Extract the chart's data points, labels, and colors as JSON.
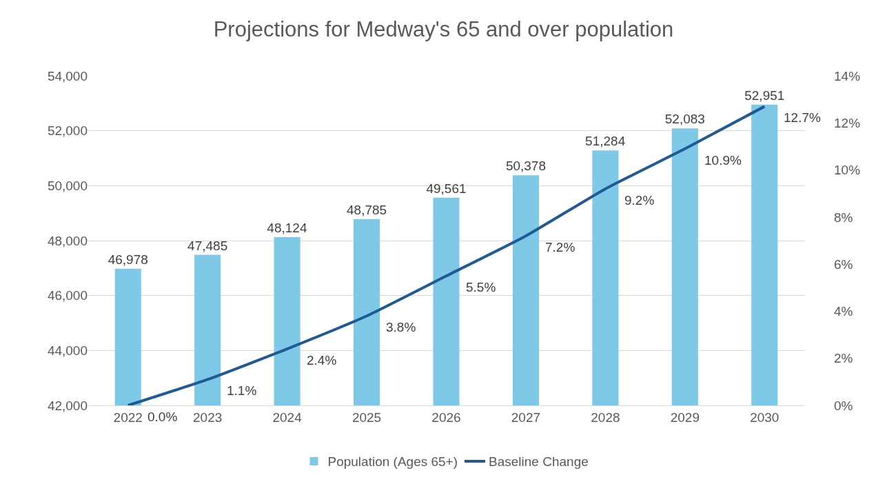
{
  "chart_data": {
    "type": "bar",
    "title": "Projections for Medway's 65 and over population",
    "categories": [
      "2022",
      "2023",
      "2024",
      "2025",
      "2026",
      "2027",
      "2028",
      "2029",
      "2030"
    ],
    "series": [
      {
        "name": "Population (Ages 65+)",
        "color": "#7ec8e8",
        "values": [
          46978,
          47485,
          48124,
          48785,
          49561,
          50378,
          51284,
          52083,
          52951
        ],
        "value_labels": [
          "46,978",
          "47,485",
          "48,124",
          "48,785",
          "49,561",
          "50,378",
          "51,284",
          "52,083",
          "52,951"
        ]
      },
      {
        "name": "Baseline Change",
        "type": "line",
        "axis": "y2",
        "color": "#1f5a96",
        "values": [
          0.0,
          1.1,
          2.4,
          3.8,
          5.5,
          7.2,
          9.2,
          10.9,
          12.7
        ],
        "value_labels": [
          "0.0%",
          "1.1%",
          "2.4%",
          "3.8%",
          "5.5%",
          "7.2%",
          "9.2%",
          "10.9%",
          "12.7%"
        ]
      }
    ],
    "ylim": [
      42000,
      54000
    ],
    "yticks": [
      {
        "value": 42000,
        "label": "42,000"
      },
      {
        "value": 44000,
        "label": "44,000"
      },
      {
        "value": 46000,
        "label": "46,000"
      },
      {
        "value": 48000,
        "label": "48,000"
      },
      {
        "value": 50000,
        "label": "50,000"
      },
      {
        "value": 52000,
        "label": "52,000"
      },
      {
        "value": 54000,
        "label": "54,000"
      }
    ],
    "y2lim": [
      0,
      14
    ],
    "y2ticks": [
      {
        "value": 0,
        "label": "0%"
      },
      {
        "value": 2,
        "label": "2%"
      },
      {
        "value": 4,
        "label": "4%"
      },
      {
        "value": 6,
        "label": "6%"
      },
      {
        "value": 8,
        "label": "8%"
      },
      {
        "value": 10,
        "label": "10%"
      },
      {
        "value": 12,
        "label": "12%"
      },
      {
        "value": 14,
        "label": "14%"
      }
    ],
    "grid": "y",
    "legend": "bottom",
    "marker": "none",
    "line_style": "solid"
  }
}
